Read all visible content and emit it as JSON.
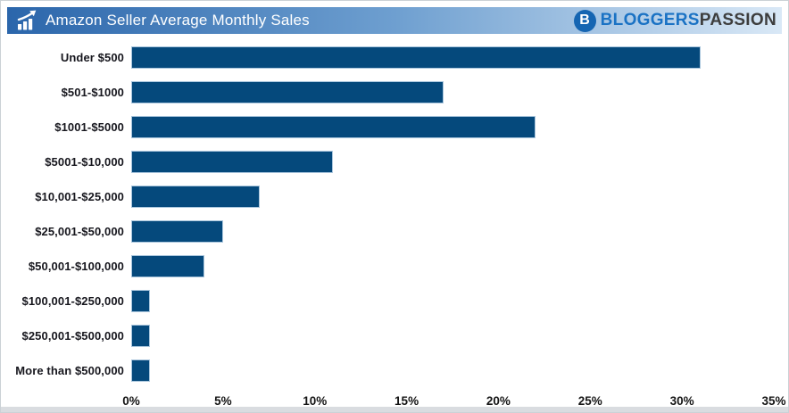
{
  "header": {
    "title": "Amazon Seller Average Monthly Sales"
  },
  "logo": {
    "initial": "B",
    "part1": "BLOGGERS",
    "part2": "PASSION"
  },
  "chart_data": {
    "type": "bar",
    "orientation": "horizontal",
    "title": "Amazon Seller Average Monthly Sales",
    "categories": [
      "Under $500",
      "$501-$1000",
      "$1001-$5000",
      "$5001-$10,000",
      "$10,001-$25,000",
      "$25,001-$50,000",
      "$50,001-$100,000",
      "$100,001-$250,000",
      "$250,001-$500,000",
      "More than $500,000"
    ],
    "values": [
      31,
      17,
      22,
      11,
      7,
      5,
      4,
      1,
      1,
      1
    ],
    "unit": "%",
    "xlabel": "",
    "ylabel": "",
    "xlim": [
      0,
      35
    ],
    "xtick_step": 5,
    "xticks": [
      "0%",
      "5%",
      "10%",
      "15%",
      "20%",
      "25%",
      "30%",
      "35%"
    ],
    "grid": false,
    "legend": false
  },
  "colors": {
    "bar_fill": "#05497c",
    "bar_border": "#aac6dd",
    "header_gradient_start": "#2b66ab",
    "header_gradient_end": "#d9e8f6",
    "header_title_text": "#ffffff",
    "logo_circle": "#1565b2",
    "logo_blue_text": "#1a72c4",
    "logo_dark_text": "#3d3d3d",
    "category_label_text": "#16161d",
    "tick_label_text": "#141414"
  }
}
